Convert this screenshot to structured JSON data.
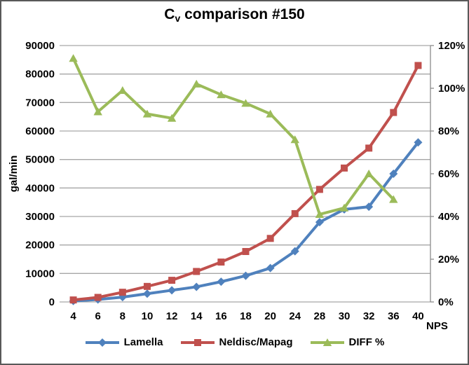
{
  "chart_data": {
    "type": "line",
    "title": {
      "prefix": "C",
      "subscript": "v",
      "suffix": " comparison #150"
    },
    "x_axis_title": "NPS",
    "categories": [
      4,
      6,
      8,
      10,
      12,
      14,
      16,
      18,
      20,
      24,
      28,
      30,
      32,
      36,
      40
    ],
    "grid": true,
    "legend_position": "bottom",
    "y_axis": {
      "title": "gal/min",
      "min": 0,
      "max": 90000,
      "tick_step": 10000,
      "tick_labels": [
        "0",
        "10000",
        "20000",
        "30000",
        "40000",
        "50000",
        "60000",
        "70000",
        "80000",
        "90000"
      ]
    },
    "y2_axis": {
      "min": 0,
      "max": 120,
      "tick_step": 20,
      "tick_labels": [
        "0%",
        "20%",
        "40%",
        "60%",
        "80%",
        "100%",
        "120%"
      ]
    },
    "colors": {
      "grid": "#A6A6A6",
      "axis": "#8C8C8C",
      "text": "#000000"
    },
    "series": [
      {
        "name": "Lamella",
        "axis": "left",
        "color": "#4F81BD",
        "marker": "diamond",
        "values": [
          330,
          850,
          1700,
          2900,
          4100,
          5300,
          7100,
          9200,
          11900,
          17800,
          28000,
          32500,
          33400,
          45000,
          56000
        ]
      },
      {
        "name": "Neldisc/Mapag",
        "axis": "left",
        "color": "#C0504D",
        "marker": "square",
        "values": [
          700,
          1600,
          3400,
          5450,
          7600,
          10700,
          14000,
          17700,
          22300,
          31000,
          39500,
          47000,
          54000,
          66500,
          83000
        ]
      },
      {
        "name": "DIFF %",
        "axis": "right",
        "color": "#9BBB59",
        "marker": "triangle",
        "values": [
          114,
          89,
          99,
          88,
          86,
          102,
          97,
          93,
          88,
          76,
          41,
          44,
          60,
          48,
          null
        ]
      }
    ]
  }
}
